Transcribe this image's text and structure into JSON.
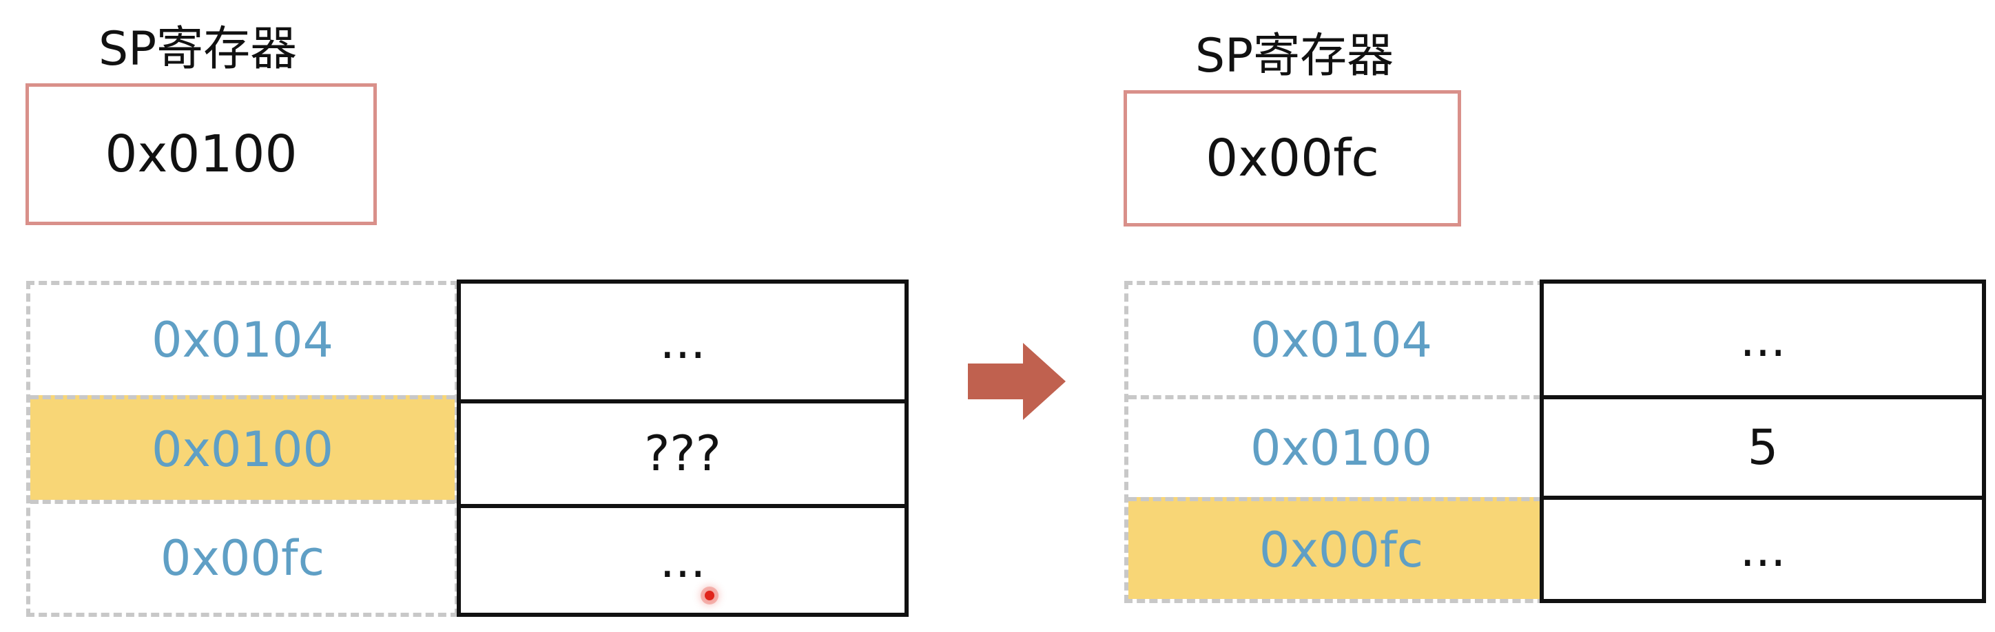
{
  "left": {
    "register_title": "SP寄存器",
    "register_value": "0x0100",
    "rows": [
      {
        "address": "0x0104",
        "value": "..."
      },
      {
        "address": "0x0100",
        "value": "???"
      },
      {
        "address": "0x00fc",
        "value": "..."
      }
    ],
    "highlighted_row": 1
  },
  "right": {
    "register_title": "SP寄存器",
    "register_value": "0x00fc",
    "rows": [
      {
        "address": "0x0104",
        "value": "..."
      },
      {
        "address": "0x0100",
        "value": "5"
      },
      {
        "address": "0x00fc",
        "value": "..."
      }
    ],
    "highlighted_row": 2
  },
  "colors": {
    "address_text": "#5f9fc5",
    "highlight": "#f8d676",
    "register_border": "#d9908a",
    "arrow": "#c0614f"
  },
  "icons": {
    "transition": "right-arrow-icon"
  }
}
